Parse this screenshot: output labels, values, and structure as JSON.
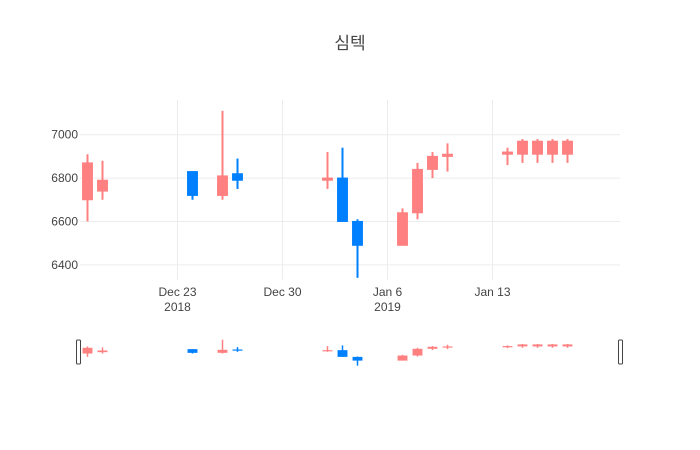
{
  "chart_data": {
    "type": "candlestick",
    "title": "심텍",
    "xlabel": "",
    "ylabel": "",
    "ylim": [
      6330,
      7160
    ],
    "y_ticks": [
      6400,
      6600,
      6800,
      7000
    ],
    "x_range": [
      "2018-12-17",
      "2019-01-21"
    ],
    "x_ticks": [
      {
        "date": "2018-12-23",
        "label": "Dec 23",
        "sublabel": "2018"
      },
      {
        "date": "2018-12-30",
        "label": "Dec 30",
        "sublabel": ""
      },
      {
        "date": "2019-01-06",
        "label": "Jan 6",
        "sublabel": "2019"
      },
      {
        "date": "2019-01-13",
        "label": "Jan 13",
        "sublabel": ""
      }
    ],
    "grid": true,
    "legend": "none",
    "rangeslider": true,
    "colors": {
      "increasing": "#ff8080",
      "decreasing": "#0080ff",
      "grid": "#ececec",
      "text": "#444444"
    },
    "candles": [
      {
        "date": "2018-12-17",
        "open": 6700,
        "high": 6910,
        "low": 6600,
        "close": 6870
      },
      {
        "date": "2018-12-18",
        "open": 6740,
        "high": 6880,
        "low": 6700,
        "close": 6790
      },
      {
        "date": "2018-12-24",
        "open": 6830,
        "high": 6830,
        "low": 6700,
        "close": 6720
      },
      {
        "date": "2018-12-26",
        "open": 6720,
        "high": 7110,
        "low": 6700,
        "close": 6810
      },
      {
        "date": "2018-12-27",
        "open": 6820,
        "high": 6890,
        "low": 6750,
        "close": 6790
      },
      {
        "date": "2019-01-02",
        "open": 6790,
        "high": 6920,
        "low": 6750,
        "close": 6800
      },
      {
        "date": "2019-01-03",
        "open": 6800,
        "high": 6940,
        "low": 6600,
        "close": 6600
      },
      {
        "date": "2019-01-04",
        "open": 6600,
        "high": 6610,
        "low": 6340,
        "close": 6490
      },
      {
        "date": "2019-01-07",
        "open": 6490,
        "high": 6660,
        "low": 6490,
        "close": 6640
      },
      {
        "date": "2019-01-08",
        "open": 6640,
        "high": 6870,
        "low": 6610,
        "close": 6840
      },
      {
        "date": "2019-01-09",
        "open": 6840,
        "high": 6920,
        "low": 6800,
        "close": 6900
      },
      {
        "date": "2019-01-10",
        "open": 6900,
        "high": 6960,
        "low": 6830,
        "close": 6910
      },
      {
        "date": "2019-01-14",
        "open": 6910,
        "high": 6940,
        "low": 6860,
        "close": 6920
      },
      {
        "date": "2019-01-15",
        "open": 6910,
        "high": 6980,
        "low": 6870,
        "close": 6970
      },
      {
        "date": "2019-01-16",
        "open": 6910,
        "high": 6980,
        "low": 6870,
        "close": 6970
      },
      {
        "date": "2019-01-17",
        "open": 6910,
        "high": 6980,
        "low": 6870,
        "close": 6970
      },
      {
        "date": "2019-01-18",
        "open": 6910,
        "high": 6980,
        "low": 6870,
        "close": 6970
      }
    ]
  }
}
